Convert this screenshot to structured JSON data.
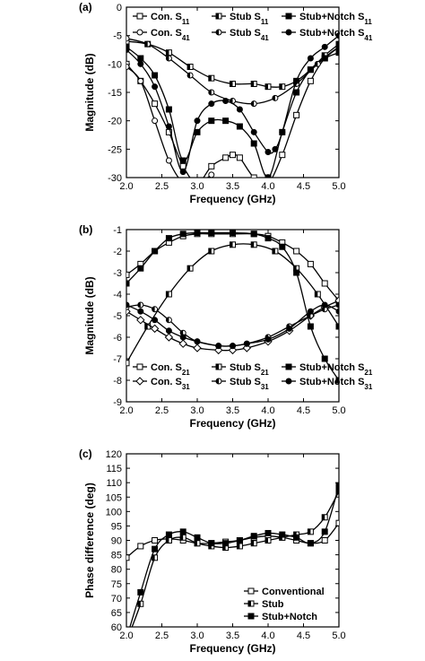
{
  "chart_data": [
    {
      "type": "line",
      "panel_label": "(a)",
      "xlabel": "Frequency (GHz)",
      "ylabel": "Magnitude (dB)",
      "xlim": [
        2.0,
        5.0
      ],
      "ylim": [
        -30,
        0
      ],
      "xticks": [
        "2.0",
        "2.5",
        "3.0",
        "3.5",
        "4.0",
        "4.5",
        "5.0"
      ],
      "yticks": [
        "0",
        "-5",
        "-10",
        "-15",
        "-20",
        "-25",
        "-30"
      ],
      "legend_position": "top",
      "series": [
        {
          "name": "Con. S11",
          "marker": "open-square",
          "x": [
            2.0,
            2.2,
            2.4,
            2.6,
            2.8,
            3.0,
            3.2,
            3.4,
            3.5,
            3.6,
            3.8,
            4.0,
            4.2,
            4.4,
            4.6,
            4.8,
            5.0
          ],
          "y": [
            -10,
            -13,
            -17,
            -22,
            -28,
            -31,
            -28,
            -26.5,
            -26,
            -26.5,
            -30,
            -31,
            -26,
            -19,
            -13,
            -9,
            -7
          ]
        },
        {
          "name": "Stub S11",
          "marker": "half-square",
          "x": [
            2.0,
            2.3,
            2.6,
            2.9,
            3.2,
            3.5,
            3.8,
            4.0,
            4.2,
            4.4,
            4.6,
            4.8,
            5.0
          ],
          "y": [
            -6,
            -6.5,
            -8,
            -10.5,
            -12.5,
            -13.5,
            -13.5,
            -14,
            -14,
            -13,
            -11,
            -8.5,
            -6.5
          ]
        },
        {
          "name": "Stub+Notch S11",
          "marker": "filled-square",
          "x": [
            2.0,
            2.2,
            2.4,
            2.6,
            2.8,
            3.0,
            3.2,
            3.4,
            3.6,
            3.8,
            4.0,
            4.2,
            4.4,
            4.6,
            4.8,
            5.0
          ],
          "y": [
            -7,
            -9,
            -12,
            -18,
            -27,
            -22,
            -20,
            -20,
            -21,
            -24,
            -30,
            -22,
            -15,
            -11,
            -9,
            -8
          ]
        },
        {
          "name": "Con. S41",
          "marker": "open-circle",
          "x": [
            2.0,
            2.2,
            2.4,
            2.6,
            2.8,
            3.0,
            3.1,
            3.2
          ],
          "y": [
            -10.5,
            -13,
            -20,
            -27,
            -31,
            -32,
            -30.5,
            -29.5
          ]
        },
        {
          "name": "Stub S41",
          "marker": "half-circle",
          "x": [
            2.0,
            2.3,
            2.6,
            2.9,
            3.2,
            3.5,
            3.8,
            4.1,
            4.4,
            4.7,
            5.0
          ],
          "y": [
            -5.5,
            -6.5,
            -9,
            -12,
            -15,
            -16.5,
            -17,
            -16,
            -13.5,
            -10,
            -7
          ]
        },
        {
          "name": "Stub+Notch S41",
          "marker": "filled-circle",
          "x": [
            2.0,
            2.2,
            2.4,
            2.6,
            2.8,
            3.0,
            3.2,
            3.4,
            3.6,
            3.8,
            4.0,
            4.1,
            4.2,
            4.4,
            4.6,
            4.8,
            5.0
          ],
          "y": [
            -7.5,
            -10,
            -14,
            -21,
            -29,
            -20,
            -17,
            -16.5,
            -18,
            -22,
            -25.5,
            -25,
            -22,
            -13,
            -9,
            -7,
            -5
          ]
        }
      ]
    },
    {
      "type": "line",
      "panel_label": "(b)",
      "xlabel": "Frequency (GHz)",
      "ylabel": "Magnitude (dB)",
      "xlim": [
        2.0,
        5.0
      ],
      "ylim": [
        -9,
        -1
      ],
      "xticks": [
        "2.0",
        "2.5",
        "3.0",
        "3.5",
        "4.0",
        "4.5",
        "5.0"
      ],
      "yticks": [
        "-1",
        "-2",
        "-3",
        "-4",
        "-5",
        "-6",
        "-7",
        "-8",
        "-9"
      ],
      "legend_position": "bottom",
      "series": [
        {
          "name": "Con. S21",
          "marker": "open-square",
          "x": [
            2.0,
            2.2,
            2.4,
            2.6,
            2.8,
            3.0,
            3.2,
            3.5,
            3.8,
            4.0,
            4.2,
            4.4,
            4.6,
            4.8,
            5.0
          ],
          "y": [
            -3.1,
            -2.6,
            -2.0,
            -1.6,
            -1.3,
            -1.2,
            -1.2,
            -1.2,
            -1.2,
            -1.3,
            -1.6,
            -2.0,
            -2.6,
            -3.5,
            -4.3
          ]
        },
        {
          "name": "Stub S21",
          "marker": "half-square",
          "x": [
            2.0,
            2.3,
            2.6,
            2.9,
            3.2,
            3.5,
            3.8,
            4.1,
            4.4,
            4.7,
            5.0
          ],
          "y": [
            -7.2,
            -5.5,
            -4.0,
            -2.8,
            -2.0,
            -1.7,
            -1.7,
            -2.0,
            -2.8,
            -4.0,
            -5.5
          ]
        },
        {
          "name": "Stub+Notch S21",
          "marker": "filled-square",
          "x": [
            2.0,
            2.2,
            2.4,
            2.6,
            2.8,
            3.0,
            3.2,
            3.5,
            3.8,
            4.0,
            4.2,
            4.4,
            4.6,
            4.8,
            5.0
          ],
          "y": [
            -3.5,
            -2.8,
            -2.0,
            -1.4,
            -1.2,
            -1.15,
            -1.15,
            -1.15,
            -1.2,
            -1.4,
            -1.8,
            -3.0,
            -5.5,
            -7.0,
            -8.0
          ]
        },
        {
          "name": "Con. S31",
          "marker": "open-diamond",
          "x": [
            2.0,
            2.2,
            2.4,
            2.6,
            2.8,
            3.0,
            3.3,
            3.5,
            3.7,
            4.0,
            4.3,
            4.6,
            4.8,
            5.0
          ],
          "y": [
            -4.8,
            -5.2,
            -5.6,
            -6.0,
            -6.3,
            -6.5,
            -6.6,
            -6.6,
            -6.5,
            -6.2,
            -5.7,
            -5.0,
            -4.6,
            -4.3
          ]
        },
        {
          "name": "Stub S31",
          "marker": "half-circle",
          "x": [
            2.0,
            2.2,
            2.4,
            2.6,
            2.8,
            3.0,
            3.3,
            3.5,
            3.7,
            4.0,
            4.3,
            4.6,
            4.8,
            5.0
          ],
          "y": [
            -4.6,
            -4.5,
            -4.7,
            -5.2,
            -5.8,
            -6.2,
            -6.4,
            -6.4,
            -6.3,
            -6.0,
            -5.5,
            -5.0,
            -4.7,
            -4.5
          ]
        },
        {
          "name": "Stub+Notch S31",
          "marker": "filled-circle",
          "x": [
            2.0,
            2.2,
            2.4,
            2.6,
            2.8,
            3.0,
            3.3,
            3.5,
            3.7,
            4.0,
            4.3,
            4.6,
            4.8,
            5.0
          ],
          "y": [
            -4.5,
            -4.8,
            -5.2,
            -5.7,
            -6.0,
            -6.2,
            -6.4,
            -6.4,
            -6.3,
            -6.1,
            -5.6,
            -4.8,
            -4.5,
            -4.8
          ]
        }
      ]
    },
    {
      "type": "line",
      "panel_label": "(c)",
      "xlabel": "Frequency (GHz)",
      "ylabel": "Phase difference (deg)",
      "xlim": [
        2.0,
        5.0
      ],
      "ylim": [
        60,
        120
      ],
      "xticks": [
        "2.0",
        "2.5",
        "3.0",
        "3.5",
        "4.0",
        "4.5",
        "5.0"
      ],
      "yticks": [
        "120",
        "115",
        "110",
        "105",
        "100",
        "95",
        "90",
        "85",
        "80",
        "75",
        "70",
        "65",
        "60"
      ],
      "legend_position": "bottom-right",
      "series": [
        {
          "name": "Conventional",
          "marker": "open-square",
          "x": [
            2.0,
            2.2,
            2.4,
            2.6,
            2.8,
            3.0,
            3.2,
            3.4,
            3.6,
            3.8,
            4.0,
            4.2,
            4.4,
            4.6,
            4.8,
            5.0
          ],
          "y": [
            84,
            88,
            90,
            90.5,
            90,
            89,
            89,
            89.5,
            90,
            91,
            91.5,
            91,
            90,
            89,
            90,
            96
          ]
        },
        {
          "name": "Stub",
          "marker": "half-square",
          "x": [
            2.0,
            2.2,
            2.4,
            2.6,
            2.8,
            3.0,
            3.2,
            3.4,
            3.6,
            3.8,
            4.0,
            4.2,
            4.4,
            4.6,
            4.8,
            5.0
          ],
          "y": [
            55,
            68,
            84,
            90,
            91,
            89,
            88,
            87.5,
            88,
            89,
            90,
            91,
            92,
            93,
            98,
            107
          ]
        },
        {
          "name": "Stub+Notch",
          "marker": "filled-square",
          "x": [
            2.0,
            2.2,
            2.4,
            2.6,
            2.8,
            3.0,
            3.2,
            3.4,
            3.6,
            3.8,
            4.0,
            4.2,
            4.4,
            4.6,
            4.8,
            5.0
          ],
          "y": [
            56,
            72,
            87,
            92,
            93,
            91,
            89,
            89,
            90,
            91.5,
            92.5,
            92,
            91,
            89,
            93,
            109
          ]
        }
      ]
    }
  ]
}
